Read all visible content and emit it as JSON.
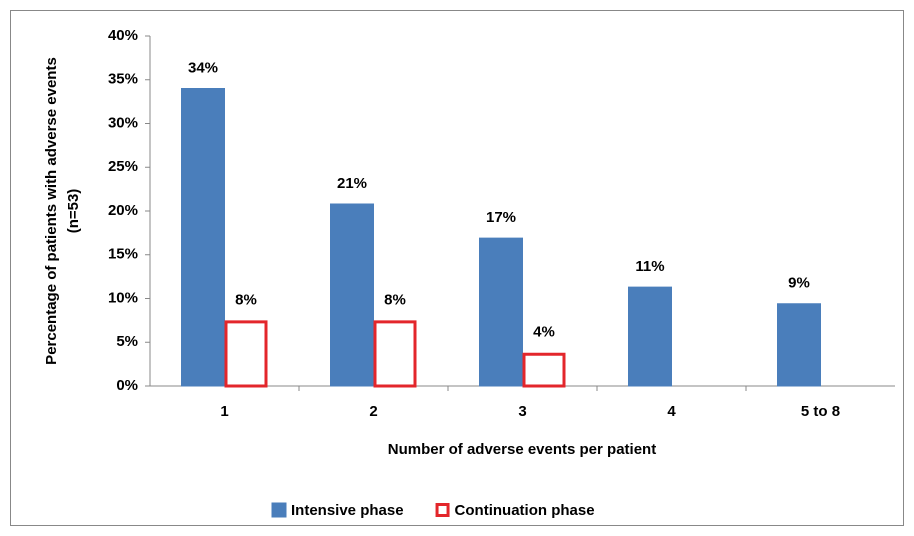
{
  "chart_data": {
    "type": "bar",
    "x_label": "Number of adverse events per patient",
    "y_label": "Percentage of patients with adverse events (n=53)",
    "categories": [
      "1",
      "2",
      "3",
      "4",
      "5 to 8"
    ],
    "series": [
      {
        "name": "Intensive phase",
        "color": "#4a7ebb",
        "fill": "#4a7ebb",
        "values": [
          34,
          20.8,
          16.9,
          11.3,
          9.4
        ],
        "value_labels": [
          "34%",
          "21%",
          "17%",
          "11%",
          "9%"
        ]
      },
      {
        "name": "Continuation phase",
        "color": "#e3262b",
        "fill": "#ffffff",
        "values": [
          7.5,
          7.5,
          3.8,
          null,
          null
        ],
        "value_labels": [
          "8%",
          "8%",
          "4%",
          null,
          null
        ]
      }
    ],
    "ylim": [
      0,
      40
    ],
    "yticks": [
      {
        "value": 0,
        "label": "0%"
      },
      {
        "value": 5,
        "label": "5%"
      },
      {
        "value": 10,
        "label": "10%"
      },
      {
        "value": 15,
        "label": "15%"
      },
      {
        "value": 20,
        "label": "20%"
      },
      {
        "value": 25,
        "label": "25%"
      },
      {
        "value": 30,
        "label": "30%"
      },
      {
        "value": 35,
        "label": "35%"
      },
      {
        "value": 40,
        "label": "40%"
      }
    ],
    "legend": "bottom"
  }
}
